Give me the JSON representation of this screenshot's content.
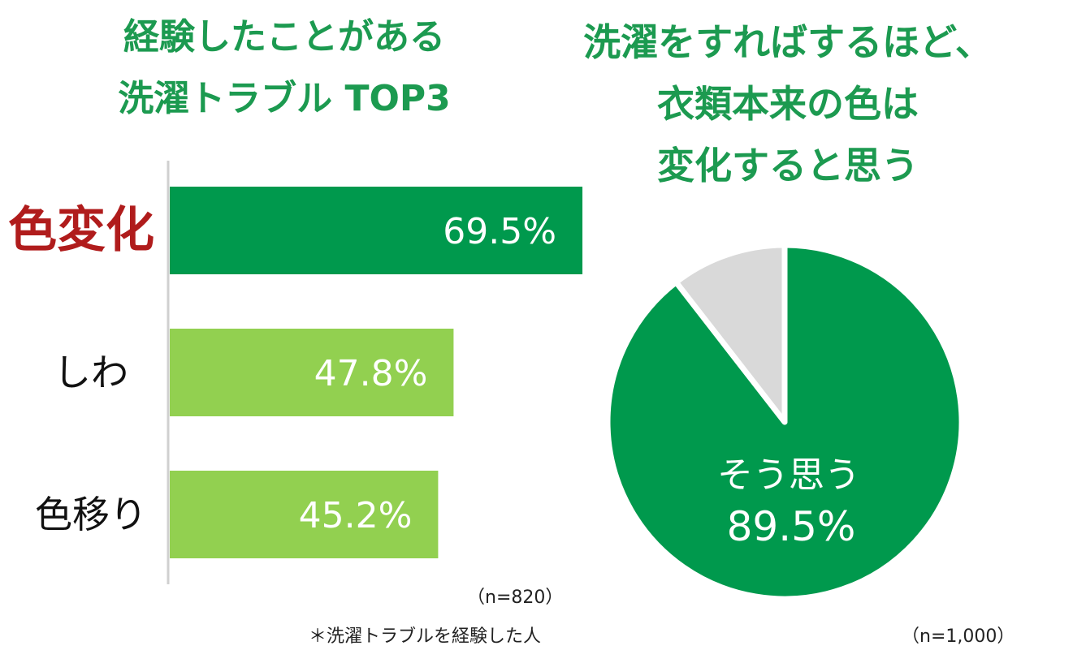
{
  "left_title": [
    "経験したことがある",
    "洗濯トラブル TOP3"
  ],
  "right_title": [
    "洗濯をすればするほど、",
    "衣類本来の色は",
    "変化すると思う"
  ],
  "left_note_n": "（n=820）",
  "left_note_footnote": "＊洗濯トラブルを経験した人",
  "right_note_n": "（n=1,000）",
  "colors": {
    "title_green": "#1c9a50",
    "highlight_bar": "#00994d",
    "other_bar": "#92d050",
    "highlight_label": "#b01c1c",
    "pie_main": "#00994d",
    "pie_rest": "#d9d9d9",
    "axis": "#d0d0d0"
  },
  "chart_data": [
    {
      "type": "bar",
      "orientation": "horizontal",
      "categories": [
        "色変化",
        "しわ",
        "色移り"
      ],
      "values": [
        69.5,
        47.8,
        45.2
      ],
      "value_labels": [
        "69.5%",
        "47.8%",
        "45.2%"
      ],
      "highlight_index": 0,
      "xlim": [
        0,
        100
      ],
      "grid": false
    },
    {
      "type": "pie",
      "slices": [
        {
          "label": "そう思う",
          "value": 89.5,
          "value_label": "89.5%"
        },
        {
          "label": "",
          "value": 10.5,
          "value_label": ""
        }
      ]
    }
  ]
}
